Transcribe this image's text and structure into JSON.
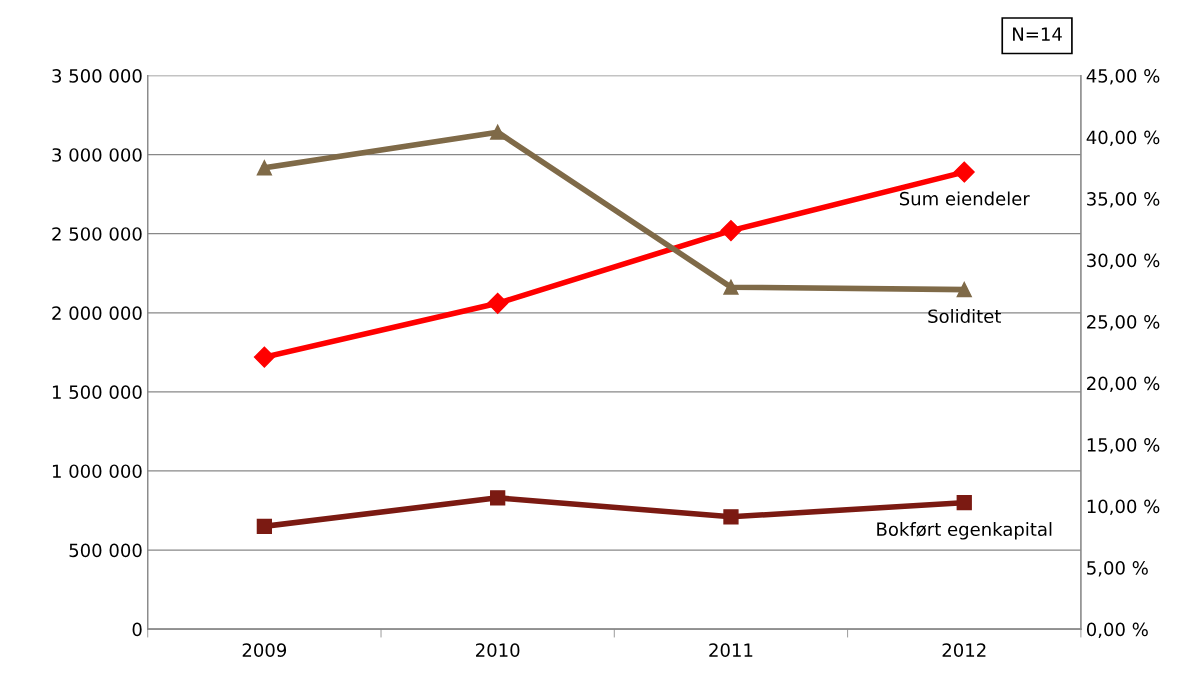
{
  "chart_data": {
    "type": "line",
    "categories": [
      "2009",
      "2010",
      "2011",
      "2012"
    ],
    "series": [
      {
        "name": "Sum eiendeler",
        "color": "#ff0000",
        "marker": "diamond",
        "values": [
          1720000,
          2060000,
          2520000,
          2890000
        ]
      },
      {
        "name": "Bokført egenkapital",
        "color": "#7b1a12",
        "marker": "square",
        "values": [
          650000,
          830000,
          710000,
          800000
        ]
      },
      {
        "name": "Soliditet",
        "color": "#7f6a48",
        "marker": "triangle",
        "axis": "y2",
        "values": [
          37.5,
          40.4,
          27.8,
          27.6
        ]
      }
    ],
    "ylim": [
      0,
      3500000
    ],
    "yticks": [
      0,
      {
        "value": 500000,
        "label": "500 000"
      },
      {
        "value": 1000000,
        "label": "1 000 000"
      },
      {
        "value": 1500000,
        "label": "1 500 000"
      },
      {
        "value": 2000000,
        "label": "2 000 000"
      },
      {
        "value": 2500000,
        "label": "2 500 000"
      },
      {
        "value": 3000000,
        "label": "3 000 000"
      },
      {
        "value": 3500000,
        "label": "3 500 000"
      }
    ],
    "y2lim": [
      0,
      45
    ],
    "y2ticks": [
      {
        "value": 0,
        "label": "0,00 %"
      },
      {
        "value": 5,
        "label": "5,00 %"
      },
      {
        "value": 10,
        "label": "10,00 %"
      },
      {
        "value": 15,
        "label": "15,00 %"
      },
      {
        "value": 20,
        "label": "20,00 %"
      },
      {
        "value": 25,
        "label": "25,00 %"
      },
      {
        "value": 30,
        "label": "30,00 %"
      },
      {
        "value": 35,
        "label": "35,00 %"
      },
      {
        "value": 40,
        "label": "40,00 %"
      },
      {
        "value": 45,
        "label": "45,00 %"
      }
    ],
    "grid": "y",
    "legend": false,
    "annotations": [
      "N=14"
    ]
  }
}
